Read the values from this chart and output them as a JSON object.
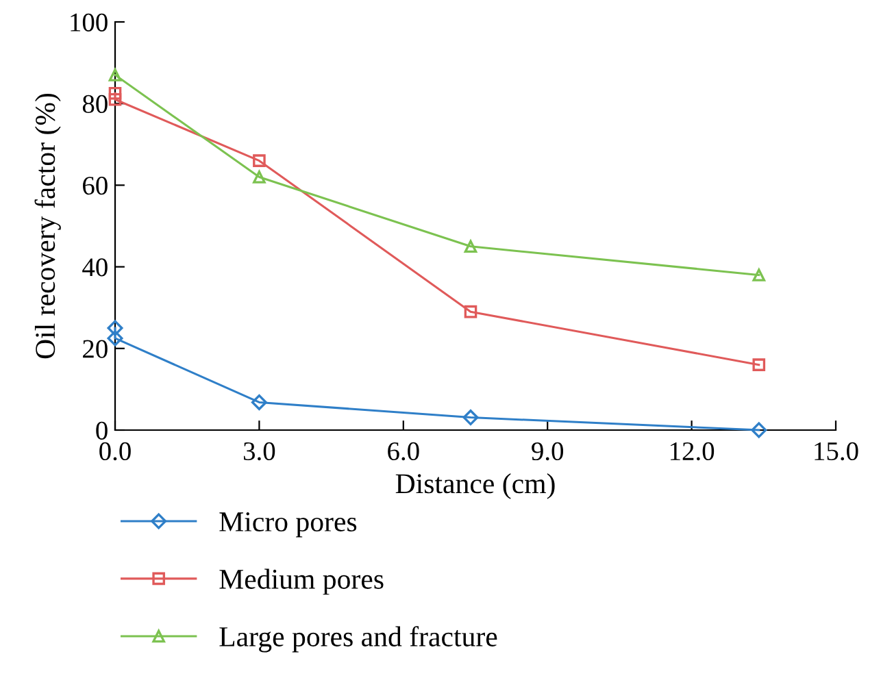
{
  "chart_data": {
    "type": "line",
    "xlabel": "Distance (cm)",
    "ylabel": "Oil recovery factor (%)",
    "xlim": [
      0,
      15
    ],
    "xticks": [
      {
        "value": 0,
        "label": "0.0"
      },
      {
        "value": 3,
        "label": "3.0"
      },
      {
        "value": 6,
        "label": "6.0"
      },
      {
        "value": 9,
        "label": "9.0"
      },
      {
        "value": 12,
        "label": "12.0"
      },
      {
        "value": 15,
        "label": "15.0"
      }
    ],
    "ylim": [
      0,
      100
    ],
    "yticks": [
      0,
      20,
      40,
      60,
      80,
      100
    ],
    "grid": false,
    "legend": "bottom left",
    "series": [
      {
        "name": "Micro pores",
        "color": "#2f7fc8",
        "marker": "diamond",
        "x": [
          0,
          0,
          3.0,
          7.4,
          13.4
        ],
        "values": [
          25,
          22.5,
          6.8,
          3.1,
          0
        ]
      },
      {
        "name": "Medium pores",
        "color": "#e05a5a",
        "marker": "square",
        "x": [
          0,
          0,
          3.0,
          7.4,
          13.4
        ],
        "values": [
          82.5,
          81,
          66,
          29,
          16
        ]
      },
      {
        "name": "Large pores and fracture",
        "color": "#7cc250",
        "marker": "triangle",
        "x": [
          0,
          3.0,
          7.4,
          13.4
        ],
        "values": [
          87,
          62,
          45,
          38
        ]
      }
    ]
  }
}
